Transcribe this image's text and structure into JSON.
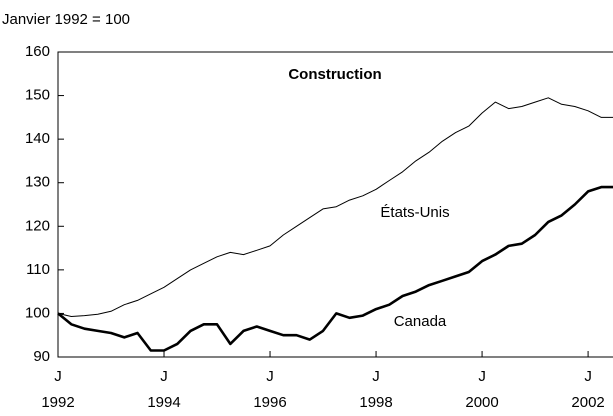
{
  "chart_data": {
    "type": "line",
    "subtitle": "Janvier 1992 = 100",
    "title": "Construction",
    "x_tick_prefix": "J",
    "x": [
      1992,
      1992.25,
      1992.5,
      1992.75,
      1993,
      1993.25,
      1993.5,
      1993.75,
      1994,
      1994.25,
      1994.5,
      1994.75,
      1995,
      1995.25,
      1995.5,
      1995.75,
      1996,
      1996.25,
      1996.5,
      1996.75,
      1997,
      1997.25,
      1997.5,
      1997.75,
      1998,
      1998.25,
      1998.5,
      1998.75,
      1999,
      1999.25,
      1999.5,
      1999.75,
      2000,
      2000.25,
      2000.5,
      2000.75,
      2001,
      2001.25,
      2001.5,
      2001.75,
      2002,
      2002.25,
      2002.5
    ],
    "series": [
      {
        "name": "États-Unis",
        "color": "#000000",
        "values": [
          100,
          99.3,
          99.5,
          99.8,
          100.5,
          102,
          103,
          104.5,
          106,
          108,
          110,
          111.5,
          113,
          114,
          113.5,
          114.5,
          115.5,
          118,
          120,
          122,
          124,
          124.5,
          126,
          127,
          128.5,
          130.5,
          132.5,
          135,
          137,
          139.5,
          141.5,
          143,
          146,
          148.5,
          147,
          147.5,
          148.5,
          149.5,
          148,
          147.5,
          146.5,
          145,
          145
        ]
      },
      {
        "name": "Canada",
        "color": "#000000",
        "values": [
          100,
          97.5,
          96.5,
          96,
          95.5,
          94.5,
          95.5,
          91.5,
          91.5,
          93,
          96,
          97.5,
          97.5,
          93,
          96,
          97,
          96,
          95,
          95,
          94,
          96,
          100,
          99,
          99.5,
          101,
          102,
          104,
          105,
          106.5,
          107.5,
          108.5,
          109.5,
          112,
          113.5,
          115.5,
          116,
          118,
          121,
          122.5,
          125,
          128,
          129,
          129
        ]
      }
    ],
    "xlim": [
      1992,
      2002.47
    ],
    "xticks": [
      1992,
      1994,
      1996,
      1998,
      2000,
      2002
    ],
    "ylim": [
      90,
      160
    ],
    "yticks": [
      90,
      100,
      110,
      120,
      130,
      140,
      150,
      160
    ],
    "grid": false
  }
}
